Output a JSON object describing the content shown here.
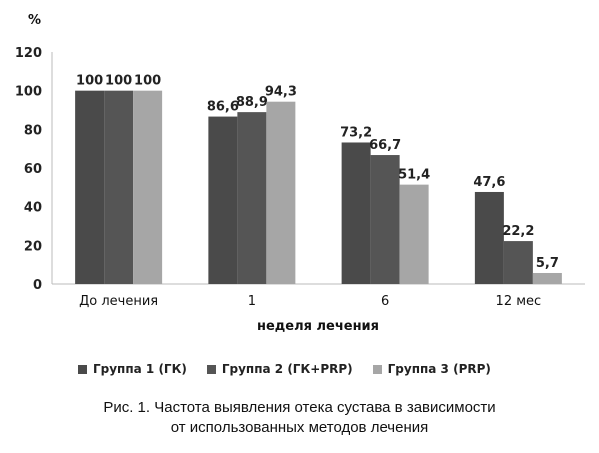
{
  "chart_data": {
    "type": "bar",
    "ylabel": "%",
    "xlabel": "неделя лечения",
    "ylim": [
      0,
      120
    ],
    "yticks": [
      "0",
      "20",
      "40",
      "60",
      "80",
      "100",
      "120"
    ],
    "categories": [
      "До лечения",
      "1",
      "6",
      "12 мес"
    ],
    "series": [
      {
        "name": "Группа 1 (ГК)",
        "color": "#4a4a4a",
        "values": [
          100,
          86.6,
          73.2,
          47.6
        ],
        "labels": [
          "100",
          "86,6",
          "73,2",
          "47,6"
        ]
      },
      {
        "name": "Группа 2 (ГК+PRP)",
        "color": "#555555",
        "values": [
          100,
          88.9,
          66.7,
          22.2
        ],
        "labels": [
          "100",
          "88,9",
          "66,7",
          "22,2"
        ]
      },
      {
        "name": "Группа 3 (PRP)",
        "color": "#a6a6a6",
        "values": [
          100,
          94.3,
          51.4,
          5.7
        ],
        "labels": [
          "100",
          "94,3",
          "51,4",
          "5,7"
        ]
      }
    ],
    "grid": false,
    "legend_position": "bottom"
  },
  "caption": {
    "line1": "Рис. 1. Частота выявления отека сустава в зависимости",
    "line2": "от использованных методов лечения"
  }
}
